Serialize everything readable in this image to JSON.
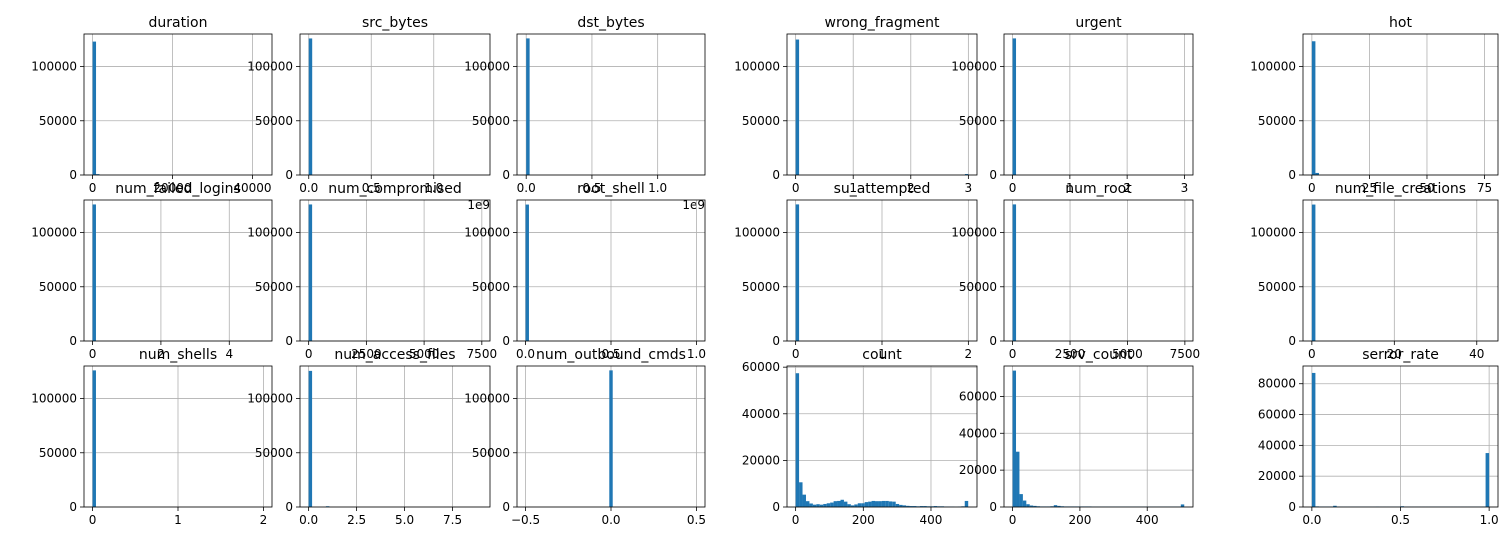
{
  "chart_data": [
    {
      "type": "bar",
      "title": "duration",
      "xlim": [
        -2150,
        44900
      ],
      "ylim": [
        0,
        130000
      ],
      "xticks": [
        {
          "v": 0,
          "label": "0"
        },
        {
          "v": 20000,
          "label": "20000"
        },
        {
          "v": 40000,
          "label": "40000"
        }
      ],
      "yticks": [
        {
          "v": 0,
          "label": "0"
        },
        {
          "v": 50000,
          "label": "50000"
        },
        {
          "v": 100000,
          "label": "100000"
        }
      ],
      "bins": [
        {
          "x0": 0,
          "x1": 862,
          "count": 123000
        },
        {
          "x0": 862,
          "x1": 1724,
          "count": 800
        }
      ]
    },
    {
      "type": "bar",
      "title": "src_bytes",
      "xlim": [
        -0.07,
        1.45
      ],
      "ylim": [
        0,
        130000
      ],
      "offset_label": "1e9",
      "xticks": [
        {
          "v": 0,
          "label": "0.0"
        },
        {
          "v": 0.5,
          "label": "0.5"
        },
        {
          "v": 1,
          "label": "1.0"
        }
      ],
      "yticks": [
        {
          "v": 0,
          "label": "0"
        },
        {
          "v": 50000,
          "label": "50000"
        },
        {
          "v": 100000,
          "label": "100000"
        }
      ],
      "bins": [
        {
          "x0": 0,
          "x1": 0.0276,
          "count": 125900
        }
      ]
    },
    {
      "type": "bar",
      "title": "dst_bytes",
      "xlim": [
        -0.07,
        1.36
      ],
      "ylim": [
        0,
        130000
      ],
      "offset_label": "1e9",
      "xticks": [
        {
          "v": 0,
          "label": "0.0"
        },
        {
          "v": 0.5,
          "label": "0.5"
        },
        {
          "v": 1,
          "label": "1.0"
        }
      ],
      "yticks": [
        {
          "v": 0,
          "label": "0"
        },
        {
          "v": 50000,
          "label": "50000"
        },
        {
          "v": 100000,
          "label": "100000"
        }
      ],
      "bins": [
        {
          "x0": 0,
          "x1": 0.026,
          "count": 125950
        }
      ]
    },
    {
      "type": "bar",
      "title": "wrong_fragment",
      "xlim": [
        -0.15,
        3.15
      ],
      "ylim": [
        0,
        130000
      ],
      "xticks": [
        {
          "v": 0,
          "label": "0"
        },
        {
          "v": 1,
          "label": "1"
        },
        {
          "v": 2,
          "label": "2"
        },
        {
          "v": 3,
          "label": "3"
        }
      ],
      "yticks": [
        {
          "v": 0,
          "label": "0"
        },
        {
          "v": 50000,
          "label": "50000"
        },
        {
          "v": 100000,
          "label": "100000"
        }
      ],
      "bins": [
        {
          "x0": 0,
          "x1": 0.06,
          "count": 124900
        },
        {
          "x0": 2.94,
          "x1": 3.0,
          "count": 900
        }
      ]
    },
    {
      "type": "bar",
      "title": "urgent",
      "xlim": [
        -0.15,
        3.15
      ],
      "ylim": [
        0,
        130000
      ],
      "xticks": [
        {
          "v": 0,
          "label": "0"
        },
        {
          "v": 1,
          "label": "1"
        },
        {
          "v": 2,
          "label": "2"
        },
        {
          "v": 3,
          "label": "3"
        }
      ],
      "yticks": [
        {
          "v": 0,
          "label": "0"
        },
        {
          "v": 50000,
          "label": "50000"
        },
        {
          "v": 100000,
          "label": "100000"
        }
      ],
      "bins": [
        {
          "x0": 0,
          "x1": 0.06,
          "count": 125950
        }
      ]
    },
    {
      "type": "bar",
      "title": "hot",
      "xlim": [
        -3.85,
        80.85
      ],
      "ylim": [
        0,
        130000
      ],
      "xticks": [
        {
          "v": 0,
          "label": "0"
        },
        {
          "v": 25,
          "label": "25"
        },
        {
          "v": 50,
          "label": "50"
        },
        {
          "v": 75,
          "label": "75"
        }
      ],
      "yticks": [
        {
          "v": 0,
          "label": "0"
        },
        {
          "v": 50000,
          "label": "50000"
        },
        {
          "v": 100000,
          "label": "100000"
        }
      ],
      "bins": [
        {
          "x0": 0,
          "x1": 1.54,
          "count": 123300
        },
        {
          "x0": 1.54,
          "x1": 3.08,
          "count": 1900
        }
      ]
    },
    {
      "type": "bar",
      "title": "num_failed_logins",
      "xlim": [
        -0.25,
        5.25
      ],
      "ylim": [
        0,
        130000
      ],
      "xticks": [
        {
          "v": 0,
          "label": "0"
        },
        {
          "v": 2,
          "label": "2"
        },
        {
          "v": 4,
          "label": "4"
        }
      ],
      "yticks": [
        {
          "v": 0,
          "label": "0"
        },
        {
          "v": 50000,
          "label": "50000"
        },
        {
          "v": 100000,
          "label": "100000"
        }
      ],
      "bins": [
        {
          "x0": 0,
          "x1": 0.1,
          "count": 125900
        }
      ]
    },
    {
      "type": "bar",
      "title": "num_compromised",
      "xlim": [
        -375,
        7854
      ],
      "ylim": [
        0,
        130000
      ],
      "xticks": [
        {
          "v": 0,
          "label": "0"
        },
        {
          "v": 2500,
          "label": "2500"
        },
        {
          "v": 5000,
          "label": "5000"
        },
        {
          "v": 7500,
          "label": "7500"
        }
      ],
      "yticks": [
        {
          "v": 0,
          "label": "0"
        },
        {
          "v": 50000,
          "label": "50000"
        },
        {
          "v": 100000,
          "label": "100000"
        }
      ],
      "bins": [
        {
          "x0": 0,
          "x1": 150,
          "count": 125900
        }
      ]
    },
    {
      "type": "bar",
      "title": "root_shell",
      "xlim": [
        -0.05,
        1.05
      ],
      "ylim": [
        0,
        130000
      ],
      "xticks": [
        {
          "v": 0,
          "label": "0.0"
        },
        {
          "v": 0.5,
          "label": "0.5"
        },
        {
          "v": 1,
          "label": "1.0"
        }
      ],
      "yticks": [
        {
          "v": 0,
          "label": "0"
        },
        {
          "v": 50000,
          "label": "50000"
        },
        {
          "v": 100000,
          "label": "100000"
        }
      ],
      "bins": [
        {
          "x0": 0,
          "x1": 0.02,
          "count": 125800
        }
      ]
    },
    {
      "type": "bar",
      "title": "su_attempted",
      "xlim": [
        -0.1,
        2.1
      ],
      "ylim": [
        0,
        130000
      ],
      "xticks": [
        {
          "v": 0,
          "label": "0"
        },
        {
          "v": 1,
          "label": "1"
        },
        {
          "v": 2,
          "label": "2"
        }
      ],
      "yticks": [
        {
          "v": 0,
          "label": "0"
        },
        {
          "v": 50000,
          "label": "50000"
        },
        {
          "v": 100000,
          "label": "100000"
        }
      ],
      "bins": [
        {
          "x0": 0,
          "x1": 0.04,
          "count": 125950
        }
      ]
    },
    {
      "type": "bar",
      "title": "num_root",
      "xlim": [
        -375,
        7854
      ],
      "ylim": [
        0,
        130000
      ],
      "xticks": [
        {
          "v": 0,
          "label": "0"
        },
        {
          "v": 2500,
          "label": "2500"
        },
        {
          "v": 5000,
          "label": "5000"
        },
        {
          "v": 7500,
          "label": "7500"
        }
      ],
      "yticks": [
        {
          "v": 0,
          "label": "0"
        },
        {
          "v": 50000,
          "label": "50000"
        },
        {
          "v": 100000,
          "label": "100000"
        }
      ],
      "bins": [
        {
          "x0": 0,
          "x1": 150,
          "count": 125950
        }
      ]
    },
    {
      "type": "bar",
      "title": "num_file_creations",
      "xlim": [
        -2.15,
        45.15
      ],
      "ylim": [
        0,
        130000
      ],
      "xticks": [
        {
          "v": 0,
          "label": "0"
        },
        {
          "v": 20,
          "label": "20"
        },
        {
          "v": 40,
          "label": "40"
        }
      ],
      "yticks": [
        {
          "v": 0,
          "label": "0"
        },
        {
          "v": 50000,
          "label": "50000"
        },
        {
          "v": 100000,
          "label": "100000"
        }
      ],
      "bins": [
        {
          "x0": 0,
          "x1": 0.86,
          "count": 125800
        }
      ]
    },
    {
      "type": "bar",
      "title": "num_shells",
      "xlim": [
        -0.1,
        2.1
      ],
      "ylim": [
        0,
        130000
      ],
      "xticks": [
        {
          "v": 0,
          "label": "0"
        },
        {
          "v": 1,
          "label": "1"
        },
        {
          "v": 2,
          "label": "2"
        }
      ],
      "yticks": [
        {
          "v": 0,
          "label": "0"
        },
        {
          "v": 50000,
          "label": "50000"
        },
        {
          "v": 100000,
          "label": "100000"
        }
      ],
      "bins": [
        {
          "x0": 0,
          "x1": 0.04,
          "count": 125950
        }
      ]
    },
    {
      "type": "bar",
      "title": "num_access_files",
      "xlim": [
        -0.45,
        9.45
      ],
      "ylim": [
        0,
        130000
      ],
      "xticks": [
        {
          "v": 0,
          "label": "0.0"
        },
        {
          "v": 2.5,
          "label": "2.5"
        },
        {
          "v": 5,
          "label": "5.0"
        },
        {
          "v": 7.5,
          "label": "7.5"
        }
      ],
      "yticks": [
        {
          "v": 0,
          "label": "0"
        },
        {
          "v": 50000,
          "label": "50000"
        },
        {
          "v": 100000,
          "label": "100000"
        }
      ],
      "bins": [
        {
          "x0": 0,
          "x1": 0.18,
          "count": 125500
        },
        {
          "x0": 0.9,
          "x1": 1.08,
          "count": 700
        }
      ]
    },
    {
      "type": "bar",
      "title": "num_outbound_cmds",
      "xlim": [
        -0.55,
        0.55
      ],
      "ylim": [
        0,
        130000
      ],
      "xticks": [
        {
          "v": -0.5,
          "label": "−0.5"
        },
        {
          "v": 0,
          "label": "0.0"
        },
        {
          "v": 0.5,
          "label": "0.5"
        }
      ],
      "yticks": [
        {
          "v": 0,
          "label": "0"
        },
        {
          "v": 50000,
          "label": "50000"
        },
        {
          "v": 100000,
          "label": "100000"
        }
      ],
      "bins": [
        {
          "x0": -0.01,
          "x1": 0.01,
          "count": 125970
        }
      ]
    },
    {
      "type": "bar",
      "title": "count",
      "xlim": [
        -25.5,
        536
      ],
      "ylim": [
        0,
        60500
      ],
      "xticks": [
        {
          "v": 0,
          "label": "0"
        },
        {
          "v": 200,
          "label": "200"
        },
        {
          "v": 400,
          "label": "400"
        }
      ],
      "yticks": [
        {
          "v": 0,
          "label": "0"
        },
        {
          "v": 20000,
          "label": "20000"
        },
        {
          "v": 40000,
          "label": "40000"
        },
        {
          "v": 60000,
          "label": "60000"
        }
      ],
      "bin_start": 0,
      "bin_width": 10.2,
      "counts": [
        57400,
        10600,
        5300,
        2500,
        1500,
        1000,
        1200,
        1000,
        1300,
        1600,
        1900,
        2500,
        2600,
        3100,
        2300,
        1200,
        700,
        1100,
        1600,
        1600,
        2100,
        2300,
        2600,
        2500,
        2500,
        2600,
        2600,
        2400,
        2300,
        1300,
        900,
        700,
        500,
        400,
        400,
        300,
        400,
        400,
        300,
        300,
        400,
        300,
        300,
        200,
        200,
        200,
        100,
        200,
        300,
        2600
      ]
    },
    {
      "type": "bar",
      "title": "srv_count",
      "xlim": [
        -25.5,
        536
      ],
      "ylim": [
        0,
        76500
      ],
      "xticks": [
        {
          "v": 0,
          "label": "0"
        },
        {
          "v": 200,
          "label": "200"
        },
        {
          "v": 400,
          "label": "400"
        }
      ],
      "yticks": [
        {
          "v": 0,
          "label": "0"
        },
        {
          "v": 20000,
          "label": "20000"
        },
        {
          "v": 40000,
          "label": "40000"
        },
        {
          "v": 60000,
          "label": "60000"
        }
      ],
      "bin_start": 0,
      "bin_width": 10.2,
      "counts": [
        74000,
        30000,
        7000,
        3500,
        1500,
        800,
        600,
        400,
        300,
        300,
        300,
        400,
        1000,
        600,
        400,
        300,
        300,
        300,
        300,
        300,
        300,
        300,
        300,
        200,
        200,
        200,
        200,
        200,
        200,
        200,
        200,
        200,
        200,
        200,
        200,
        200,
        200,
        200,
        200,
        200,
        200,
        200,
        200,
        200,
        200,
        200,
        200,
        200,
        200,
        1400
      ]
    },
    {
      "type": "bar",
      "title": "serror_rate",
      "xlim": [
        -0.05,
        1.05
      ],
      "ylim": [
        0,
        91500
      ],
      "xticks": [
        {
          "v": 0,
          "label": "0.0"
        },
        {
          "v": 0.5,
          "label": "0.5"
        },
        {
          "v": 1,
          "label": "1.0"
        }
      ],
      "yticks": [
        {
          "v": 0,
          "label": "0"
        },
        {
          "v": 20000,
          "label": "20000"
        },
        {
          "v": 40000,
          "label": "40000"
        },
        {
          "v": 60000,
          "label": "60000"
        },
        {
          "v": 80000,
          "label": "80000"
        }
      ],
      "bin_start": 0,
      "bin_width": 0.02,
      "counts": [
        87000,
        400,
        300,
        300,
        300,
        300,
        800,
        300,
        200,
        200,
        200,
        200,
        200,
        200,
        200,
        200,
        200,
        200,
        300,
        200,
        200,
        200,
        200,
        200,
        200,
        500,
        200,
        200,
        200,
        200,
        200,
        200,
        200,
        200,
        200,
        200,
        200,
        200,
        200,
        200,
        200,
        200,
        200,
        200,
        200,
        200,
        200,
        200,
        300,
        35000
      ]
    }
  ]
}
